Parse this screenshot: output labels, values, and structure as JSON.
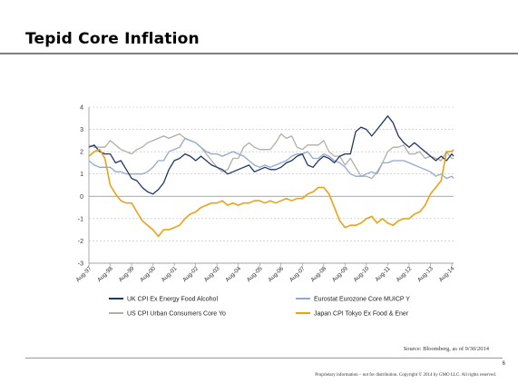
{
  "slide": {
    "title": "Tepid Core Inflation",
    "source": "Source: Bloomberg, as of 9/30/2014",
    "page_number": "6",
    "footer": "Proprietary information – not for distribution. Copyright © 2014 by GMO LLC. All rights reserved."
  },
  "chart_data": {
    "type": "line",
    "title": "",
    "xlabel": "",
    "ylabel": "",
    "ylim": [
      -3,
      4
    ],
    "yticks": [
      "4",
      "3",
      "2",
      "1",
      "0",
      "-1",
      "-2",
      "-3"
    ],
    "xlim": [
      "Aug-97",
      "Sep-14"
    ],
    "xticks": [
      "Aug-97",
      "Aug-98",
      "Aug-99",
      "Aug-00",
      "Aug-01",
      "Aug-02",
      "Aug-03",
      "Aug-04",
      "Aug-05",
      "Aug-06",
      "Aug-07",
      "Aug-08",
      "Aug-09",
      "Aug-10",
      "Aug-11",
      "Aug-12",
      "Aug-13",
      "Aug-14"
    ],
    "grid": "horizontal dashed",
    "legend": "bottom",
    "series": [
      {
        "name": "UK CPI Ex Energy Food Alcohol",
        "color": "#1f3864",
        "points": [
          [
            "1997-08",
            2.2
          ],
          [
            "1997-11",
            2.3
          ],
          [
            "1998-02",
            2.0
          ],
          [
            "1998-05",
            1.9
          ],
          [
            "1998-08",
            1.9
          ],
          [
            "1998-11",
            1.5
          ],
          [
            "1999-02",
            1.6
          ],
          [
            "1999-05",
            1.2
          ],
          [
            "1999-08",
            0.8
          ],
          [
            "1999-11",
            0.7
          ],
          [
            "2000-02",
            0.4
          ],
          [
            "2000-05",
            0.2
          ],
          [
            "2000-08",
            0.1
          ],
          [
            "2000-11",
            0.3
          ],
          [
            "2001-02",
            0.6
          ],
          [
            "2001-05",
            1.2
          ],
          [
            "2001-08",
            1.6
          ],
          [
            "2001-11",
            1.7
          ],
          [
            "2002-02",
            1.9
          ],
          [
            "2002-05",
            1.8
          ],
          [
            "2002-08",
            1.6
          ],
          [
            "2002-11",
            1.8
          ],
          [
            "2003-02",
            1.6
          ],
          [
            "2003-05",
            1.4
          ],
          [
            "2003-08",
            1.3
          ],
          [
            "2003-11",
            1.2
          ],
          [
            "2004-02",
            1.0
          ],
          [
            "2004-05",
            1.1
          ],
          [
            "2004-08",
            1.2
          ],
          [
            "2004-11",
            1.3
          ],
          [
            "2005-02",
            1.4
          ],
          [
            "2005-05",
            1.1
          ],
          [
            "2005-08",
            1.2
          ],
          [
            "2005-11",
            1.3
          ],
          [
            "2006-02",
            1.2
          ],
          [
            "2006-05",
            1.2
          ],
          [
            "2006-08",
            1.3
          ],
          [
            "2006-11",
            1.5
          ],
          [
            "2007-02",
            1.6
          ],
          [
            "2007-05",
            1.8
          ],
          [
            "2007-08",
            1.9
          ],
          [
            "2007-11",
            1.4
          ],
          [
            "2008-02",
            1.3
          ],
          [
            "2008-05",
            1.6
          ],
          [
            "2008-08",
            1.8
          ],
          [
            "2008-11",
            1.7
          ],
          [
            "2009-02",
            1.5
          ],
          [
            "2009-05",
            1.8
          ],
          [
            "2009-08",
            1.9
          ],
          [
            "2009-11",
            1.9
          ],
          [
            "2010-02",
            2.9
          ],
          [
            "2010-05",
            3.1
          ],
          [
            "2010-08",
            3.0
          ],
          [
            "2010-11",
            2.7
          ],
          [
            "2011-02",
            3.0
          ],
          [
            "2011-05",
            3.3
          ],
          [
            "2011-08",
            3.6
          ],
          [
            "2011-11",
            3.3
          ],
          [
            "2012-02",
            2.7
          ],
          [
            "2012-05",
            2.4
          ],
          [
            "2012-08",
            2.2
          ],
          [
            "2012-11",
            2.4
          ],
          [
            "2013-02",
            2.2
          ],
          [
            "2013-05",
            2.0
          ],
          [
            "2013-08",
            1.8
          ],
          [
            "2013-11",
            1.6
          ],
          [
            "2014-02",
            1.8
          ],
          [
            "2014-05",
            1.6
          ],
          [
            "2014-08",
            1.9
          ],
          [
            "2014-09",
            1.8
          ]
        ]
      },
      {
        "name": "Eurostat Eurozone Core MUICP Y",
        "color": "#8faacc",
        "points": [
          [
            "1997-08",
            1.6
          ],
          [
            "1997-11",
            1.4
          ],
          [
            "1998-02",
            1.3
          ],
          [
            "1998-05",
            1.3
          ],
          [
            "1998-08",
            1.3
          ],
          [
            "1998-11",
            1.1
          ],
          [
            "1999-02",
            1.1
          ],
          [
            "1999-05",
            1.0
          ],
          [
            "1999-08",
            1.0
          ],
          [
            "1999-11",
            1.0
          ],
          [
            "2000-02",
            1.0
          ],
          [
            "2000-05",
            1.1
          ],
          [
            "2000-08",
            1.3
          ],
          [
            "2000-11",
            1.6
          ],
          [
            "2001-02",
            1.6
          ],
          [
            "2001-05",
            2.0
          ],
          [
            "2001-08",
            2.1
          ],
          [
            "2001-11",
            2.2
          ],
          [
            "2002-02",
            2.6
          ],
          [
            "2002-05",
            2.5
          ],
          [
            "2002-08",
            2.4
          ],
          [
            "2002-11",
            2.2
          ],
          [
            "2003-02",
            2.0
          ],
          [
            "2003-05",
            1.9
          ],
          [
            "2003-08",
            1.9
          ],
          [
            "2003-11",
            1.8
          ],
          [
            "2004-02",
            1.9
          ],
          [
            "2004-05",
            2.0
          ],
          [
            "2004-08",
            1.9
          ],
          [
            "2004-11",
            1.8
          ],
          [
            "2005-02",
            1.6
          ],
          [
            "2005-05",
            1.4
          ],
          [
            "2005-08",
            1.3
          ],
          [
            "2005-11",
            1.4
          ],
          [
            "2006-02",
            1.3
          ],
          [
            "2006-05",
            1.4
          ],
          [
            "2006-08",
            1.5
          ],
          [
            "2006-11",
            1.6
          ],
          [
            "2007-02",
            1.8
          ],
          [
            "2007-05",
            1.9
          ],
          [
            "2007-08",
            1.9
          ],
          [
            "2007-11",
            2.0
          ],
          [
            "2008-02",
            1.7
          ],
          [
            "2008-05",
            1.7
          ],
          [
            "2008-08",
            1.9
          ],
          [
            "2008-11",
            1.8
          ],
          [
            "2009-02",
            1.6
          ],
          [
            "2009-05",
            1.5
          ],
          [
            "2009-08",
            1.3
          ],
          [
            "2009-11",
            1.0
          ],
          [
            "2010-02",
            0.9
          ],
          [
            "2010-05",
            0.9
          ],
          [
            "2010-08",
            1.0
          ],
          [
            "2010-11",
            1.1
          ],
          [
            "2011-02",
            1.0
          ],
          [
            "2011-05",
            1.5
          ],
          [
            "2011-08",
            1.5
          ],
          [
            "2011-11",
            1.6
          ],
          [
            "2012-02",
            1.6
          ],
          [
            "2012-05",
            1.6
          ],
          [
            "2012-08",
            1.5
          ],
          [
            "2012-11",
            1.4
          ],
          [
            "2013-02",
            1.3
          ],
          [
            "2013-05",
            1.2
          ],
          [
            "2013-08",
            1.1
          ],
          [
            "2013-11",
            0.9
          ],
          [
            "2014-02",
            1.0
          ],
          [
            "2014-05",
            0.8
          ],
          [
            "2014-08",
            0.9
          ],
          [
            "2014-09",
            0.8
          ]
        ]
      },
      {
        "name": "US CPI Urban Consumers Core Yo",
        "color": "#b3aea6",
        "points": [
          [
            "1997-08",
            2.3
          ],
          [
            "1997-11",
            2.2
          ],
          [
            "1998-02",
            2.2
          ],
          [
            "1998-05",
            2.2
          ],
          [
            "1998-08",
            2.5
          ],
          [
            "1998-11",
            2.3
          ],
          [
            "1999-02",
            2.1
          ],
          [
            "1999-05",
            2.0
          ],
          [
            "1999-08",
            1.9
          ],
          [
            "1999-11",
            2.1
          ],
          [
            "2000-02",
            2.2
          ],
          [
            "2000-05",
            2.4
          ],
          [
            "2000-08",
            2.5
          ],
          [
            "2000-11",
            2.6
          ],
          [
            "2001-02",
            2.7
          ],
          [
            "2001-05",
            2.6
          ],
          [
            "2001-08",
            2.7
          ],
          [
            "2001-11",
            2.8
          ],
          [
            "2002-02",
            2.6
          ],
          [
            "2002-05",
            2.5
          ],
          [
            "2002-08",
            2.4
          ],
          [
            "2002-11",
            2.2
          ],
          [
            "2003-02",
            1.9
          ],
          [
            "2003-05",
            1.6
          ],
          [
            "2003-08",
            1.3
          ],
          [
            "2003-11",
            1.1
          ],
          [
            "2004-02",
            1.2
          ],
          [
            "2004-05",
            1.7
          ],
          [
            "2004-08",
            1.7
          ],
          [
            "2004-11",
            2.2
          ],
          [
            "2005-02",
            2.4
          ],
          [
            "2005-05",
            2.2
          ],
          [
            "2005-08",
            2.1
          ],
          [
            "2005-11",
            2.1
          ],
          [
            "2006-02",
            2.1
          ],
          [
            "2006-05",
            2.4
          ],
          [
            "2006-08",
            2.8
          ],
          [
            "2006-11",
            2.6
          ],
          [
            "2007-02",
            2.7
          ],
          [
            "2007-05",
            2.2
          ],
          [
            "2007-08",
            2.1
          ],
          [
            "2007-11",
            2.3
          ],
          [
            "2008-02",
            2.3
          ],
          [
            "2008-05",
            2.3
          ],
          [
            "2008-08",
            2.5
          ],
          [
            "2008-11",
            2.0
          ],
          [
            "2009-02",
            1.8
          ],
          [
            "2009-05",
            1.8
          ],
          [
            "2009-08",
            1.4
          ],
          [
            "2009-11",
            1.7
          ],
          [
            "2010-02",
            1.3
          ],
          [
            "2010-05",
            0.9
          ],
          [
            "2010-08",
            0.9
          ],
          [
            "2010-11",
            0.8
          ],
          [
            "2011-02",
            1.1
          ],
          [
            "2011-05",
            1.5
          ],
          [
            "2011-08",
            2.0
          ],
          [
            "2011-11",
            2.2
          ],
          [
            "2012-02",
            2.2
          ],
          [
            "2012-05",
            2.3
          ],
          [
            "2012-08",
            1.9
          ],
          [
            "2012-11",
            1.9
          ],
          [
            "2013-02",
            2.0
          ],
          [
            "2013-05",
            1.7
          ],
          [
            "2013-08",
            1.8
          ],
          [
            "2013-11",
            1.7
          ],
          [
            "2014-02",
            1.6
          ],
          [
            "2014-05",
            2.0
          ],
          [
            "2014-08",
            1.7
          ],
          [
            "2014-09",
            1.7
          ]
        ]
      },
      {
        "name": "Japan CPI Tokyo Ex Food & Ener",
        "color": "#e8a317",
        "points": [
          [
            "1997-08",
            1.8
          ],
          [
            "1997-11",
            2.0
          ],
          [
            "1998-02",
            2.1
          ],
          [
            "1998-05",
            1.7
          ],
          [
            "1998-08",
            0.5
          ],
          [
            "1998-11",
            0.1
          ],
          [
            "1999-02",
            -0.2
          ],
          [
            "1999-05",
            -0.3
          ],
          [
            "1999-08",
            -0.3
          ],
          [
            "1999-11",
            -0.7
          ],
          [
            "2000-02",
            -1.1
          ],
          [
            "2000-05",
            -1.3
          ],
          [
            "2000-08",
            -1.5
          ],
          [
            "2000-11",
            -1.8
          ],
          [
            "2001-02",
            -1.5
          ],
          [
            "2001-05",
            -1.5
          ],
          [
            "2001-08",
            -1.4
          ],
          [
            "2001-11",
            -1.3
          ],
          [
            "2002-02",
            -1.0
          ],
          [
            "2002-05",
            -0.8
          ],
          [
            "2002-08",
            -0.7
          ],
          [
            "2002-11",
            -0.5
          ],
          [
            "2003-02",
            -0.4
          ],
          [
            "2003-05",
            -0.3
          ],
          [
            "2003-08",
            -0.3
          ],
          [
            "2003-11",
            -0.2
          ],
          [
            "2004-02",
            -0.4
          ],
          [
            "2004-05",
            -0.3
          ],
          [
            "2004-08",
            -0.4
          ],
          [
            "2004-11",
            -0.3
          ],
          [
            "2005-02",
            -0.3
          ],
          [
            "2005-05",
            -0.2
          ],
          [
            "2005-08",
            -0.2
          ],
          [
            "2005-11",
            -0.3
          ],
          [
            "2006-02",
            -0.2
          ],
          [
            "2006-05",
            -0.3
          ],
          [
            "2006-08",
            -0.2
          ],
          [
            "2006-11",
            -0.1
          ],
          [
            "2007-02",
            -0.2
          ],
          [
            "2007-05",
            -0.1
          ],
          [
            "2007-08",
            -0.1
          ],
          [
            "2007-11",
            0.1
          ],
          [
            "2008-02",
            0.2
          ],
          [
            "2008-05",
            0.4
          ],
          [
            "2008-08",
            0.4
          ],
          [
            "2008-11",
            0.1
          ],
          [
            "2009-02",
            -0.5
          ],
          [
            "2009-05",
            -1.1
          ],
          [
            "2009-08",
            -1.4
          ],
          [
            "2009-11",
            -1.3
          ],
          [
            "2010-02",
            -1.3
          ],
          [
            "2010-05",
            -1.2
          ],
          [
            "2010-08",
            -1.0
          ],
          [
            "2010-11",
            -0.9
          ],
          [
            "2011-02",
            -1.2
          ],
          [
            "2011-05",
            -1.0
          ],
          [
            "2011-08",
            -1.2
          ],
          [
            "2011-11",
            -1.3
          ],
          [
            "2012-02",
            -1.1
          ],
          [
            "2012-05",
            -1.0
          ],
          [
            "2012-08",
            -1.0
          ],
          [
            "2012-11",
            -0.8
          ],
          [
            "2013-02",
            -0.7
          ],
          [
            "2013-05",
            -0.4
          ],
          [
            "2013-08",
            0.1
          ],
          [
            "2013-11",
            0.4
          ],
          [
            "2014-02",
            0.7
          ],
          [
            "2014-05",
            2.0
          ],
          [
            "2014-08",
            2.0
          ],
          [
            "2014-09",
            2.1
          ]
        ]
      }
    ]
  }
}
